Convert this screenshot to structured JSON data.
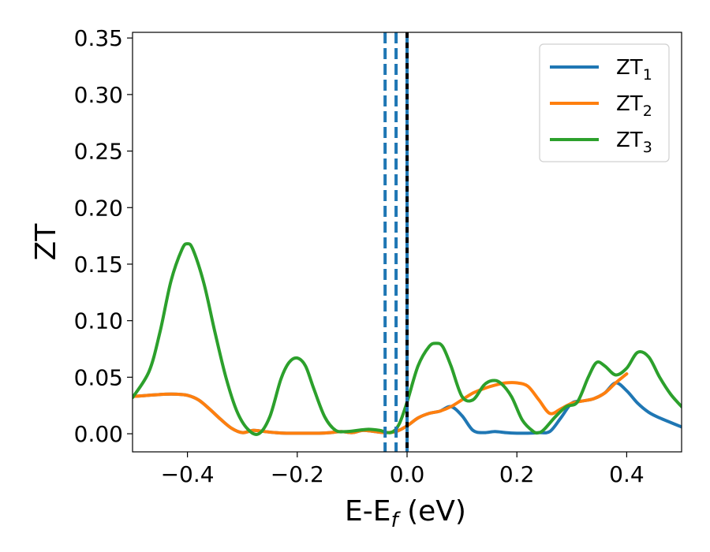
{
  "chart_data": {
    "type": "line",
    "xlabel": "E-E",
    "xlabel_sub": "f",
    "xlabel_unit": " (eV)",
    "ylabel": "ZT",
    "xlim": [
      -0.5,
      0.5
    ],
    "ylim": [
      -0.016,
      0.355
    ],
    "xticks": [
      -0.4,
      -0.2,
      0.0,
      0.2,
      0.4
    ],
    "xtick_labels": [
      "−0.4",
      "−0.2",
      "0.0",
      "0.2",
      "0.4"
    ],
    "yticks": [
      0.0,
      0.05,
      0.1,
      0.15,
      0.2,
      0.25,
      0.3,
      0.35
    ],
    "ytick_labels": [
      "0.00",
      "0.05",
      "0.10",
      "0.15",
      "0.20",
      "0.25",
      "0.30",
      "0.35"
    ],
    "grid": false,
    "legend_position": "top-right",
    "vlines": [
      {
        "x": -0.04,
        "style": "dashed",
        "color": "#1f77b4"
      },
      {
        "x": -0.02,
        "style": "dashed",
        "color": "#1f77b4"
      },
      {
        "x": 0.0,
        "style": "solid",
        "color": "#1f77b4"
      },
      {
        "x": 0.0,
        "style": "dashed",
        "color": "#000000"
      }
    ],
    "series": [
      {
        "name": "ZT",
        "name_sub": "1",
        "color": "#1f77b4",
        "x": [
          -0.5,
          -0.47,
          -0.44,
          -0.42,
          -0.4,
          -0.38,
          -0.36,
          -0.34,
          -0.32,
          -0.3,
          -0.28,
          -0.26,
          -0.24,
          -0.22,
          -0.2,
          -0.18,
          -0.16,
          -0.14,
          -0.12,
          -0.1,
          -0.08,
          -0.06,
          -0.04,
          -0.02,
          0.0,
          0.02,
          0.04,
          0.06,
          0.08,
          0.1,
          0.12,
          0.14,
          0.16,
          0.18,
          0.2,
          0.22,
          0.24,
          0.26,
          0.28,
          0.3,
          0.32,
          0.34,
          0.36,
          0.38,
          0.4,
          0.42,
          0.44,
          0.46,
          0.48,
          0.5
        ],
        "y": [
          0.033,
          0.034,
          0.035,
          0.035,
          0.034,
          0.03,
          0.022,
          0.013,
          0.005,
          0.001,
          0.003,
          0.002,
          0.001,
          0.0005,
          0.0005,
          0.0005,
          0.0005,
          0.001,
          0.002,
          0.001,
          0.003,
          0.002,
          0.001,
          0.002,
          0.007,
          0.014,
          0.018,
          0.02,
          0.024,
          0.016,
          0.003,
          0.001,
          0.002,
          0.001,
          0.0005,
          0.0005,
          0.001,
          0.002,
          0.014,
          0.027,
          0.029,
          0.031,
          0.036,
          0.045,
          0.038,
          0.027,
          0.019,
          0.014,
          0.01,
          0.006
        ]
      },
      {
        "name": "ZT",
        "name_sub": "2",
        "color": "#ff7f0e",
        "x": [
          -0.5,
          -0.47,
          -0.44,
          -0.42,
          -0.4,
          -0.38,
          -0.36,
          -0.34,
          -0.32,
          -0.3,
          -0.28,
          -0.26,
          -0.24,
          -0.22,
          -0.2,
          -0.18,
          -0.16,
          -0.14,
          -0.12,
          -0.1,
          -0.08,
          -0.06,
          -0.04,
          -0.02,
          0.0,
          0.02,
          0.04,
          0.06,
          0.08,
          0.1,
          0.12,
          0.14,
          0.16,
          0.18,
          0.2,
          0.22,
          0.24,
          0.26,
          0.28,
          0.3,
          0.32,
          0.34,
          0.36,
          0.38,
          0.4
        ],
        "y": [
          0.033,
          0.034,
          0.035,
          0.035,
          0.034,
          0.03,
          0.022,
          0.013,
          0.005,
          0.001,
          0.003,
          0.002,
          0.001,
          0.0005,
          0.0005,
          0.0005,
          0.0005,
          0.001,
          0.002,
          0.001,
          0.003,
          0.002,
          0.001,
          0.002,
          0.007,
          0.014,
          0.018,
          0.02,
          0.024,
          0.03,
          0.036,
          0.04,
          0.043,
          0.045,
          0.045,
          0.042,
          0.03,
          0.018,
          0.022,
          0.027,
          0.029,
          0.031,
          0.036,
          0.045,
          0.053
        ]
      },
      {
        "name": "ZT",
        "name_sub": "3",
        "color": "#2ca02c",
        "x": [
          -0.5,
          -0.47,
          -0.45,
          -0.43,
          -0.41,
          -0.4,
          -0.39,
          -0.37,
          -0.35,
          -0.33,
          -0.31,
          -0.29,
          -0.27,
          -0.25,
          -0.23,
          -0.215,
          -0.2,
          -0.185,
          -0.17,
          -0.15,
          -0.13,
          -0.11,
          -0.09,
          -0.07,
          -0.05,
          -0.03,
          -0.015,
          0.0,
          0.02,
          0.04,
          0.053,
          0.065,
          0.08,
          0.1,
          0.12,
          0.14,
          0.155,
          0.17,
          0.19,
          0.21,
          0.23,
          0.24,
          0.25,
          0.27,
          0.29,
          0.31,
          0.33,
          0.345,
          0.36,
          0.38,
          0.4,
          0.42,
          0.44,
          0.46,
          0.48,
          0.5
        ],
        "y": [
          0.032,
          0.055,
          0.09,
          0.135,
          0.163,
          0.168,
          0.163,
          0.133,
          0.09,
          0.05,
          0.02,
          0.004,
          0.0,
          0.015,
          0.048,
          0.063,
          0.067,
          0.06,
          0.04,
          0.015,
          0.003,
          0.002,
          0.003,
          0.004,
          0.003,
          0.001,
          0.008,
          0.028,
          0.06,
          0.077,
          0.08,
          0.077,
          0.06,
          0.033,
          0.03,
          0.043,
          0.047,
          0.045,
          0.033,
          0.012,
          0.002,
          0.001,
          0.004,
          0.015,
          0.024,
          0.028,
          0.05,
          0.063,
          0.06,
          0.052,
          0.058,
          0.072,
          0.068,
          0.05,
          0.035,
          0.024
        ]
      }
    ]
  }
}
